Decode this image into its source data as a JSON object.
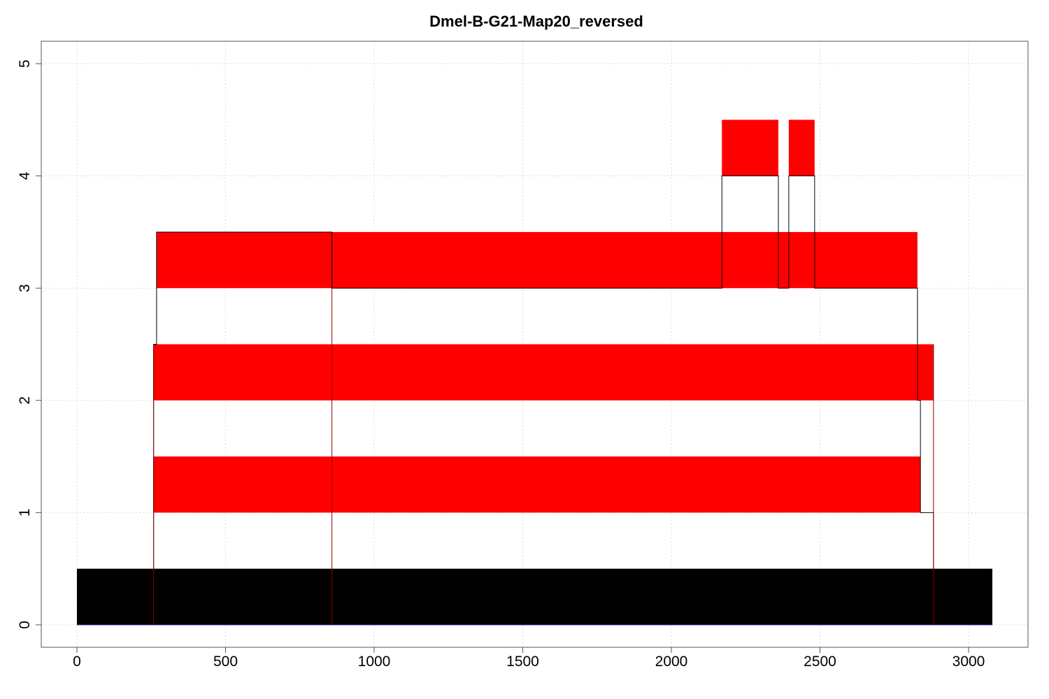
{
  "chart_data": {
    "type": "bar",
    "title": "Dmel-B-G21-Map20_reversed",
    "xlabel": "",
    "ylabel": "",
    "xlim": [
      -120,
      3200
    ],
    "ylim": [
      -0.2,
      5.2
    ],
    "x_ticks": [
      0,
      500,
      1000,
      1500,
      2000,
      2500,
      3000
    ],
    "y_ticks": [
      0,
      1,
      2,
      3,
      4,
      5
    ],
    "grid": true,
    "reference": {
      "start": 0,
      "end": 3080,
      "y0": 0,
      "y1": 0.5,
      "color": "#000000"
    },
    "segments": [
      {
        "row": 1,
        "start": 258,
        "end": 2838,
        "y0": 1,
        "y1": 1.5,
        "color": "#ff0000"
      },
      {
        "row": 2,
        "start": 258,
        "end": 2882,
        "y0": 2,
        "y1": 2.5,
        "color": "#ff0000"
      },
      {
        "row": 3,
        "start": 268,
        "end": 2828,
        "y0": 3,
        "y1": 3.5,
        "color": "#ff0000"
      },
      {
        "row": 4,
        "start": 2170,
        "end": 2360,
        "y0": 4,
        "y1": 4.5,
        "color": "#ff0000"
      },
      {
        "row": 4,
        "start": 2395,
        "end": 2482,
        "y0": 4,
        "y1": 4.5,
        "color": "#ff0000"
      }
    ],
    "divider_x": 858,
    "outline": [
      [
        258,
        0
      ],
      [
        258,
        1.5
      ],
      [
        258,
        2.5
      ],
      [
        268,
        2.5
      ],
      [
        268,
        3.5
      ],
      [
        858,
        3.5
      ],
      [
        858,
        3
      ],
      [
        2170,
        3
      ],
      [
        2170,
        4
      ],
      [
        2360,
        4
      ],
      [
        2360,
        3
      ],
      [
        2395,
        3
      ],
      [
        2395,
        4
      ],
      [
        2482,
        4
      ],
      [
        2482,
        3
      ],
      [
        2828,
        3
      ],
      [
        2828,
        2
      ],
      [
        2838,
        2
      ],
      [
        2838,
        1
      ],
      [
        2882,
        1
      ],
      [
        2882,
        0
      ]
    ],
    "colors": {
      "segment": "#ff0000",
      "reference": "#000000",
      "outline": "#000000",
      "outline_edge": "#8b0000"
    }
  }
}
